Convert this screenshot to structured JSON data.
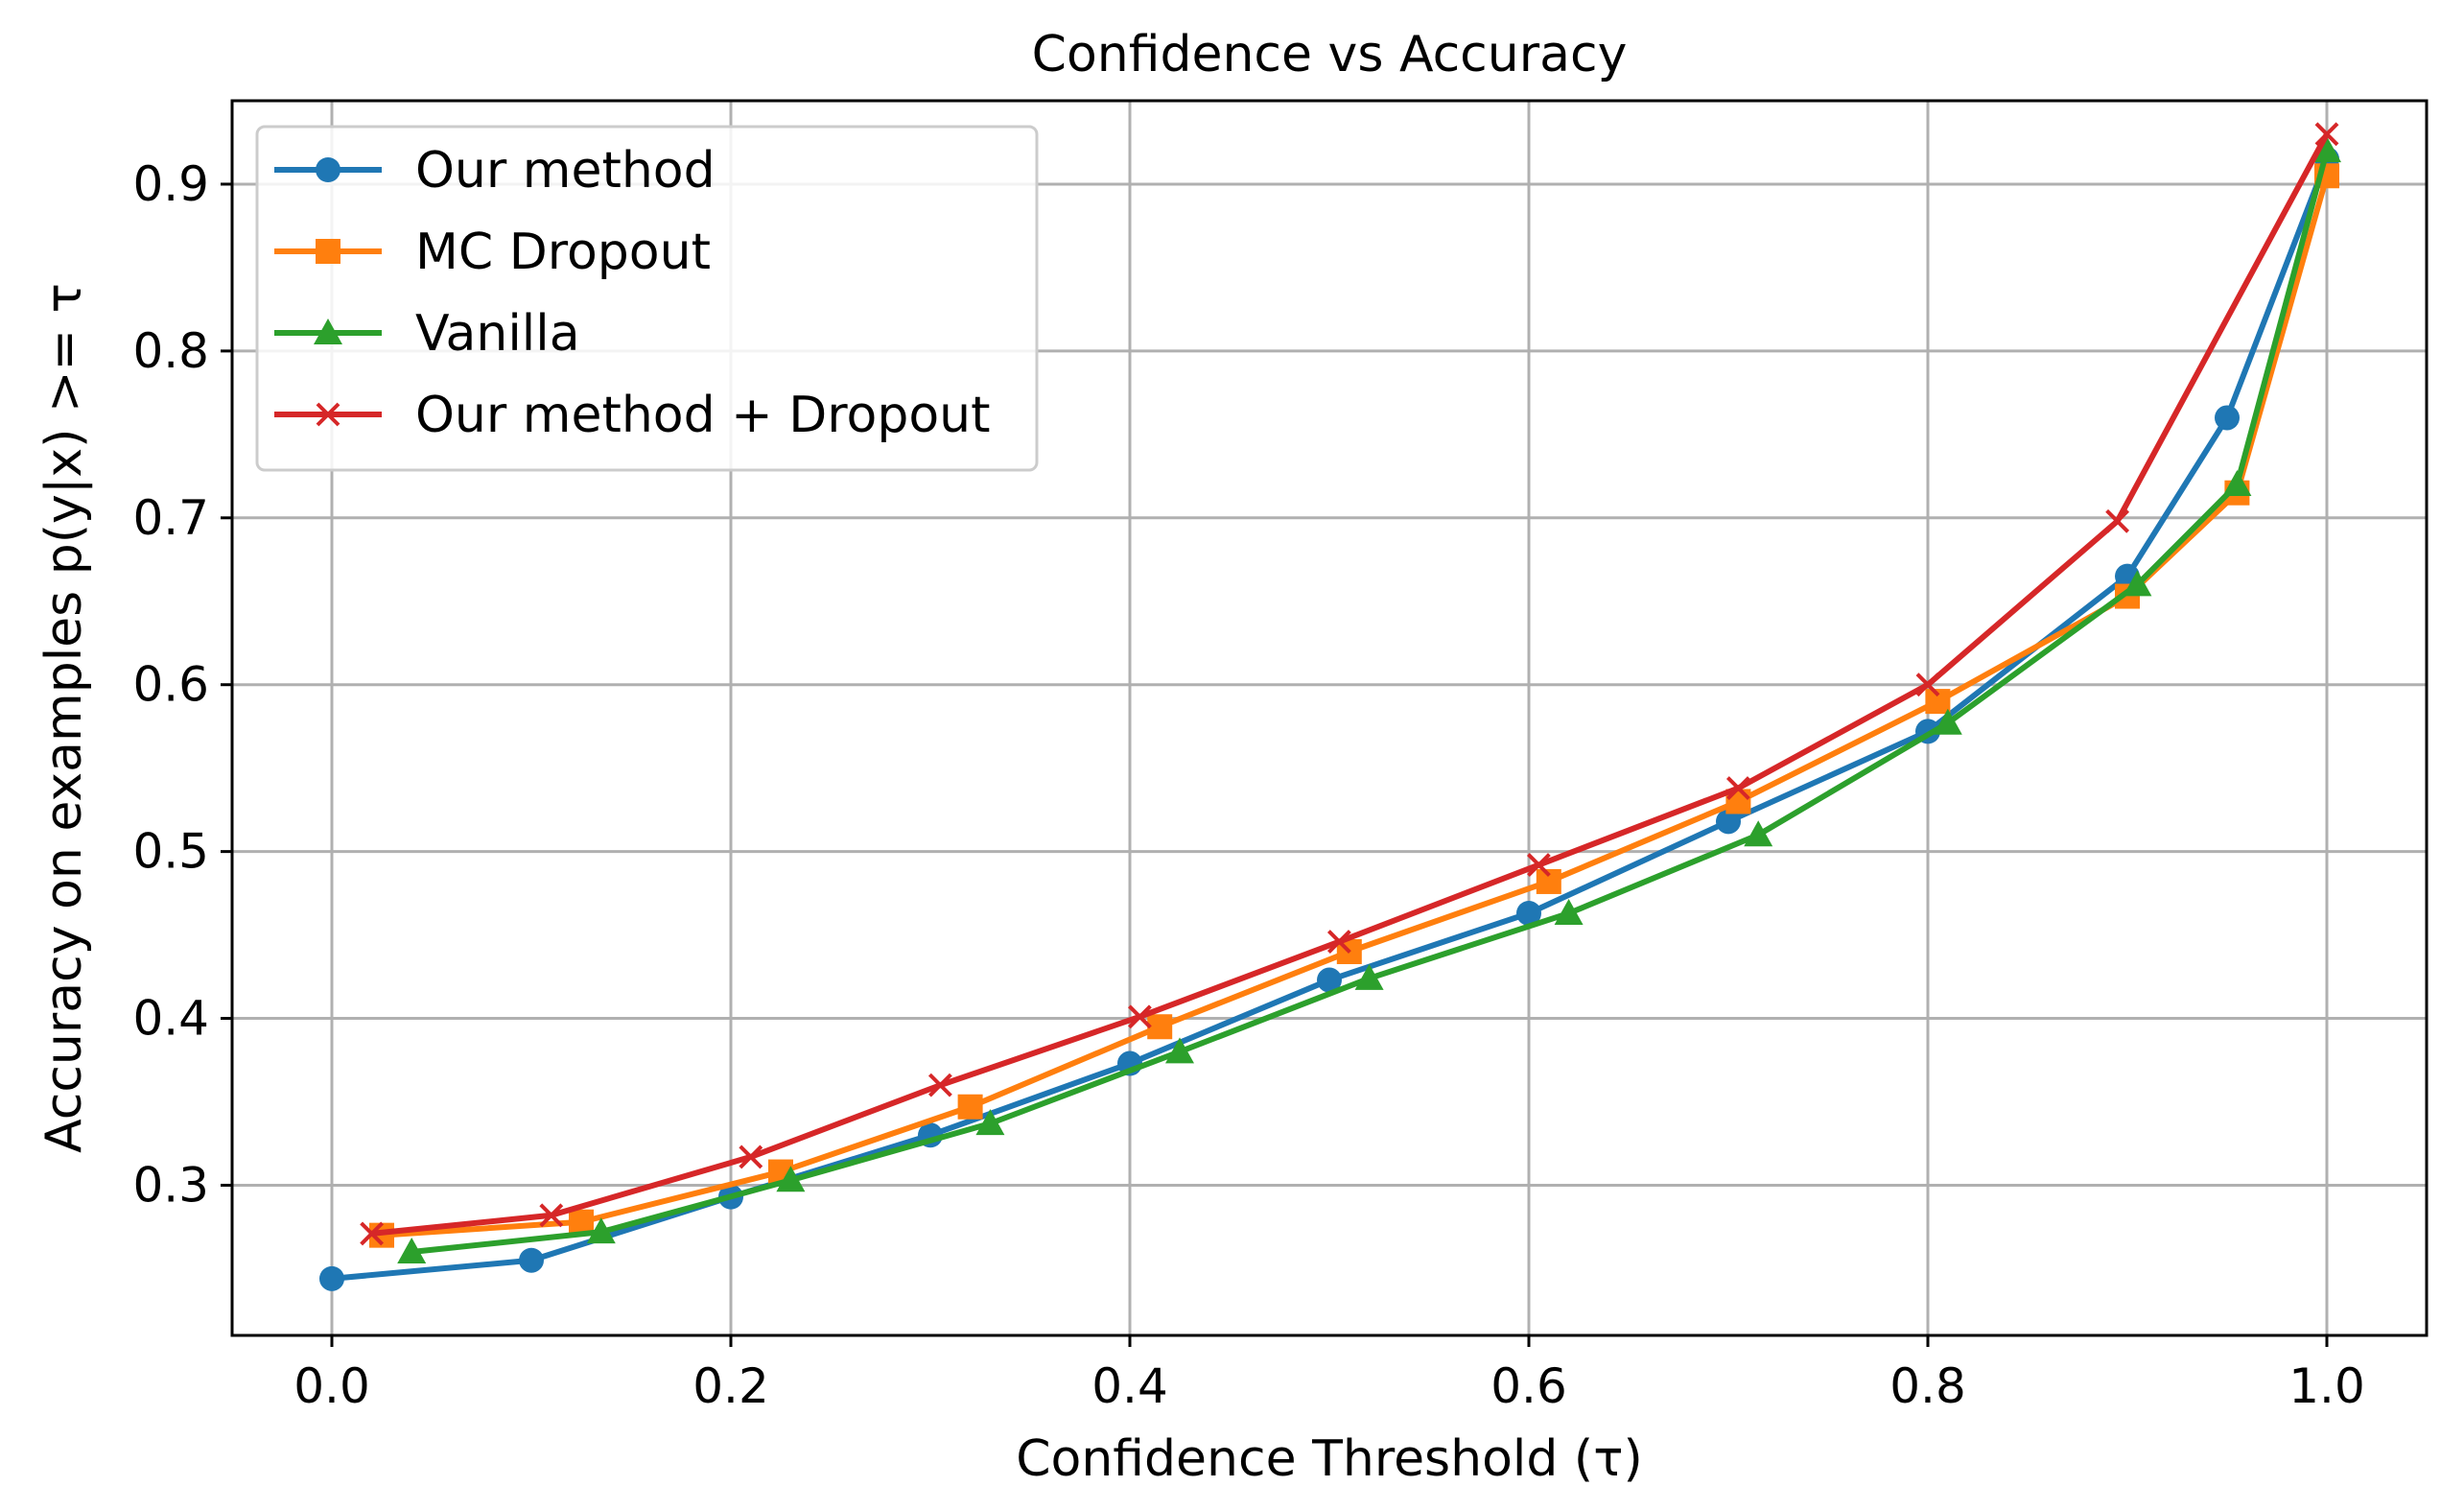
{
  "chart_data": {
    "type": "line",
    "title": "Confidence vs Accuracy",
    "xlabel": "Confidence Threshold (τ)",
    "ylabel": "Accuracy on examples p(y|x) >= τ",
    "xlim": [
      -0.05,
      1.05
    ],
    "ylim": [
      0.21,
      0.95
    ],
    "xticks": [
      {
        "value": 0.0,
        "label": "0.0"
      },
      {
        "value": 0.2,
        "label": "0.2"
      },
      {
        "value": 0.4,
        "label": "0.4"
      },
      {
        "value": 0.6,
        "label": "0.6"
      },
      {
        "value": 0.8,
        "label": "0.8"
      },
      {
        "value": 1.0,
        "label": "1.0"
      }
    ],
    "yticks": [
      {
        "value": 0.3,
        "label": "0.3"
      },
      {
        "value": 0.4,
        "label": "0.4"
      },
      {
        "value": 0.5,
        "label": "0.5"
      },
      {
        "value": 0.6,
        "label": "0.6"
      },
      {
        "value": 0.7,
        "label": "0.7"
      },
      {
        "value": 0.8,
        "label": "0.8"
      },
      {
        "value": 0.9,
        "label": "0.9"
      }
    ],
    "grid": true,
    "legend_position": "top-left",
    "series": [
      {
        "name": "Our method",
        "color": "#1f77b4",
        "marker": "circle",
        "x": [
          0.0,
          0.1,
          0.2,
          0.3,
          0.4,
          0.5,
          0.6,
          0.7,
          0.8,
          0.9,
          0.95,
          1.0
        ],
        "y": [
          0.244,
          0.255,
          0.293,
          0.33,
          0.373,
          0.423,
          0.463,
          0.518,
          0.572,
          0.665,
          0.76,
          0.915
        ]
      },
      {
        "name": "MC Dropout",
        "color": "#ff7f0e",
        "marker": "square",
        "x": [
          0.025,
          0.125,
          0.225,
          0.32,
          0.415,
          0.51,
          0.61,
          0.705,
          0.805,
          0.9,
          0.955,
          1.0
        ],
        "y": [
          0.27,
          0.278,
          0.308,
          0.347,
          0.395,
          0.44,
          0.482,
          0.53,
          0.59,
          0.653,
          0.715,
          0.905
        ]
      },
      {
        "name": "Vanilla",
        "color": "#2ca02c",
        "marker": "triangle",
        "x": [
          0.04,
          0.135,
          0.23,
          0.33,
          0.425,
          0.52,
          0.62,
          0.715,
          0.81,
          0.905,
          0.955,
          1.0
        ],
        "y": [
          0.26,
          0.272,
          0.303,
          0.337,
          0.38,
          0.424,
          0.463,
          0.51,
          0.577,
          0.66,
          0.72,
          0.92
        ]
      },
      {
        "name": "Our method + Dropout",
        "color": "#d62728",
        "marker": "x",
        "x": [
          0.02,
          0.11,
          0.21,
          0.305,
          0.405,
          0.505,
          0.605,
          0.705,
          0.8,
          0.895,
          1.0
        ],
        "y": [
          0.271,
          0.282,
          0.317,
          0.36,
          0.401,
          0.446,
          0.492,
          0.538,
          0.6,
          0.698,
          0.93
        ]
      }
    ]
  }
}
